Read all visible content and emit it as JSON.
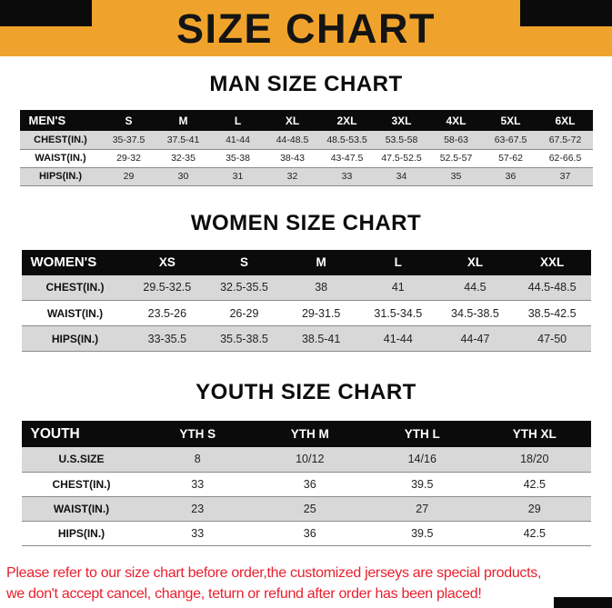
{
  "page": {
    "title": "SIZE CHART",
    "colors": {
      "banner_orange": "#F0A32C",
      "header_black": "#0B0B0B",
      "row_gray": "#D8D8D8",
      "disclaimer_red": "#E8202D"
    }
  },
  "sections": [
    {
      "id": "man",
      "heading": "MAN SIZE CHART",
      "table": {
        "header": [
          "MEN'S",
          "S",
          "M",
          "L",
          "XL",
          "2XL",
          "3XL",
          "4XL",
          "5XL",
          "6XL"
        ],
        "rows": [
          {
            "label": "CHEST(IN.)",
            "values": [
              "35-37.5",
              "37.5-41",
              "41-44",
              "44-48.5",
              "48.5-53.5",
              "53.5-58",
              "58-63",
              "63-67.5",
              "67.5-72"
            ]
          },
          {
            "label": "WAIST(IN.)",
            "values": [
              "29-32",
              "32-35",
              "35-38",
              "38-43",
              "43-47.5",
              "47.5-52.5",
              "52.5-57",
              "57-62",
              "62-66.5"
            ]
          },
          {
            "label": "HIPS(IN.)",
            "values": [
              "29",
              "30",
              "31",
              "32",
              "33",
              "34",
              "35",
              "36",
              "37"
            ]
          }
        ]
      }
    },
    {
      "id": "women",
      "heading": "WOMEN SIZE CHART",
      "table": {
        "header": [
          "WOMEN'S",
          "XS",
          "S",
          "M",
          "L",
          "XL",
          "XXL"
        ],
        "rows": [
          {
            "label": "CHEST(IN.)",
            "values": [
              "29.5-32.5",
              "32.5-35.5",
              "38",
              "41",
              "44.5",
              "44.5-48.5"
            ]
          },
          {
            "label": "WAIST(IN.)",
            "values": [
              "23.5-26",
              "26-29",
              "29-31.5",
              "31.5-34.5",
              "34.5-38.5",
              "38.5-42.5"
            ]
          },
          {
            "label": "HIPS(IN.)",
            "values": [
              "33-35.5",
              "35.5-38.5",
              "38.5-41",
              "41-44",
              "44-47",
              "47-50"
            ]
          }
        ]
      }
    },
    {
      "id": "youth",
      "heading": "YOUTH SIZE CHART",
      "table": {
        "header": [
          "YOUTH",
          "YTH S",
          "YTH M",
          "YTH L",
          "YTH XL"
        ],
        "rows": [
          {
            "label": "U.S.SIZE",
            "values": [
              "8",
              "10/12",
              "14/16",
              "18/20"
            ]
          },
          {
            "label": "CHEST(IN.)",
            "values": [
              "33",
              "36",
              "39.5",
              "42.5"
            ]
          },
          {
            "label": "WAIST(IN.)",
            "values": [
              "23",
              "25",
              "27",
              "29"
            ]
          },
          {
            "label": "HIPS(IN.)",
            "values": [
              "33",
              "36",
              "39.5",
              "42.5"
            ]
          }
        ]
      }
    }
  ],
  "disclaimer": {
    "line1": "Please refer to our size chart before order,the customized jerseys are special products,",
    "line2": "we don't accept cancel, change, teturn or refund after order has been placed!"
  }
}
